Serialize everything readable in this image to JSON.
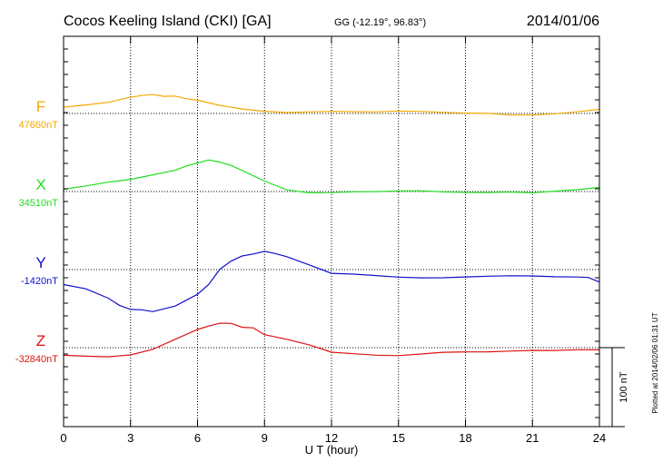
{
  "header": {
    "title": "Cocos Keeling Island (CKI)  [GA]",
    "coords": "GG (-12.19°,  96.83°)",
    "date": "2014/01/06"
  },
  "footer": {
    "xlabel": "U T (hour)",
    "plotted": "Plotted at 2014/02/06 01:31  UT"
  },
  "scale_bar": {
    "label": "100 nT",
    "value_nT": 100
  },
  "chart_data": {
    "type": "line",
    "title": "Cocos Keeling Island (CKI)  [GA]",
    "xlabel": "U T (hour)",
    "ylabel": "",
    "xlim": [
      0,
      24
    ],
    "x_ticks": [
      0,
      3,
      6,
      9,
      12,
      15,
      18,
      21,
      24
    ],
    "grid": true,
    "units": "nT",
    "series": [
      {
        "name": "F",
        "baseline_label": "47660nT",
        "baseline": 47660,
        "color": "#f5a800",
        "x": [
          0,
          1,
          2,
          3,
          3.5,
          4,
          4.5,
          5,
          5.5,
          6,
          7,
          8,
          9,
          10,
          11,
          12,
          13,
          14,
          15,
          16,
          17,
          18,
          19,
          20,
          21,
          22,
          23,
          24
        ],
        "y": [
          47668,
          47671,
          47675,
          47681,
          47683,
          47683,
          47683,
          47681,
          47679,
          47677,
          47671,
          47666,
          47663,
          47661,
          47661,
          47662,
          47663,
          47663,
          47663,
          47662,
          47661,
          47660,
          47660,
          47659,
          47659,
          47659,
          47661,
          47665
        ]
      },
      {
        "name": "X",
        "baseline_label": "34510nT",
        "baseline": 34510,
        "color": "#22dd22",
        "x": [
          0,
          1,
          2,
          3,
          4,
          5,
          5.5,
          6,
          6.5,
          7,
          7.5,
          8,
          9,
          10,
          11,
          12,
          13,
          14,
          15,
          16,
          17,
          18,
          19,
          20,
          21,
          22,
          23,
          24
        ],
        "y": [
          34514,
          34517,
          34521,
          34525,
          34531,
          34537,
          34542,
          34547,
          34549,
          34548,
          34543,
          34536,
          34522,
          34512,
          34509,
          34509,
          34510,
          34510,
          34510,
          34510,
          34510,
          34510,
          34509,
          34509,
          34508,
          34510,
          34512,
          34516
        ]
      },
      {
        "name": "Y",
        "baseline_label": "-1420nT",
        "baseline": -1420,
        "color": "#1010cc",
        "x": [
          0,
          1,
          2,
          2.5,
          3,
          3.5,
          4,
          5,
          6,
          6.5,
          7,
          7.5,
          8,
          8.5,
          9,
          9.5,
          10,
          11,
          12,
          13,
          14,
          15,
          16,
          17,
          18,
          19,
          20,
          21,
          22,
          23,
          23.5,
          24
        ],
        "y": [
          -1439,
          -1445,
          -1457,
          -1465,
          -1470,
          -1472,
          -1472,
          -1466,
          -1452,
          -1438,
          -1420,
          -1409,
          -1403,
          -1400,
          -1397,
          -1400,
          -1403,
          -1413,
          -1425,
          -1427,
          -1428,
          -1429,
          -1430,
          -1430,
          -1429,
          -1429,
          -1429,
          -1428,
          -1428,
          -1429,
          -1430,
          -1436
        ]
      },
      {
        "name": "Z",
        "baseline_label": "-32840nT",
        "baseline": -32840,
        "color": "#dd1111",
        "x": [
          0,
          1,
          2,
          3,
          4,
          5,
          6,
          6.5,
          7,
          7.5,
          8,
          8.5,
          9,
          10,
          11,
          12,
          13,
          14,
          15,
          16,
          17,
          18,
          19,
          20,
          21,
          22,
          23,
          24
        ],
        "y": [
          -32850,
          -32850,
          -32851,
          -32849,
          -32842,
          -32830,
          -32818,
          -32812,
          -32809,
          -32810,
          -32813,
          -32816,
          -32823,
          -32830,
          -32837,
          -32846,
          -32848,
          -32849,
          -32849,
          -32848,
          -32847,
          -32846,
          -32845,
          -32844,
          -32843,
          -32843,
          -32843,
          -32844
        ]
      }
    ]
  }
}
